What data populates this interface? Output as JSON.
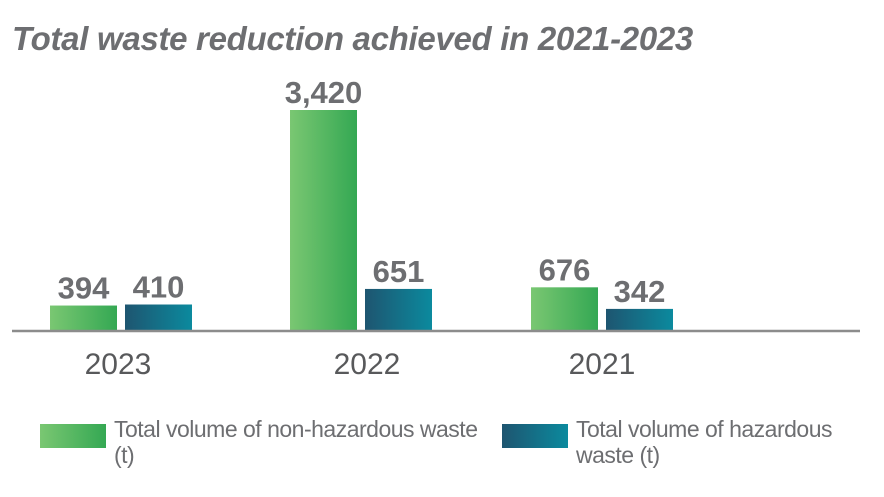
{
  "title": "Total waste reduction achieved in 2021-2023",
  "colors": {
    "non_hazardous_start": "#7ac772",
    "non_hazardous_end": "#34a853",
    "hazardous_start": "#1e5570",
    "hazardous_end": "#0b8a9e",
    "axis": "#8c8c8c",
    "text": "#6d6e71"
  },
  "legend": [
    {
      "label": "Total volume of non-hazardous waste (t)",
      "swatch": "non_hazardous"
    },
    {
      "label": "Total volume of hazardous waste (t)",
      "swatch": "hazardous"
    }
  ],
  "chart_data": {
    "type": "bar",
    "title": "Total waste reduction achieved in 2021-2023",
    "categories": [
      "2023",
      "2022",
      "2021"
    ],
    "series": [
      {
        "name": "Total volume of non-hazardous waste (t)",
        "values": [
          394,
          3420,
          676
        ],
        "labels": [
          "394",
          "3,420",
          "676"
        ]
      },
      {
        "name": "Total volume of hazardous waste (t)",
        "values": [
          410,
          651,
          342
        ],
        "labels": [
          "410",
          "651",
          "342"
        ]
      }
    ],
    "ylim": [
      0,
      3500
    ],
    "grid": false,
    "legend_position": "bottom",
    "xlabel": "",
    "ylabel": ""
  }
}
